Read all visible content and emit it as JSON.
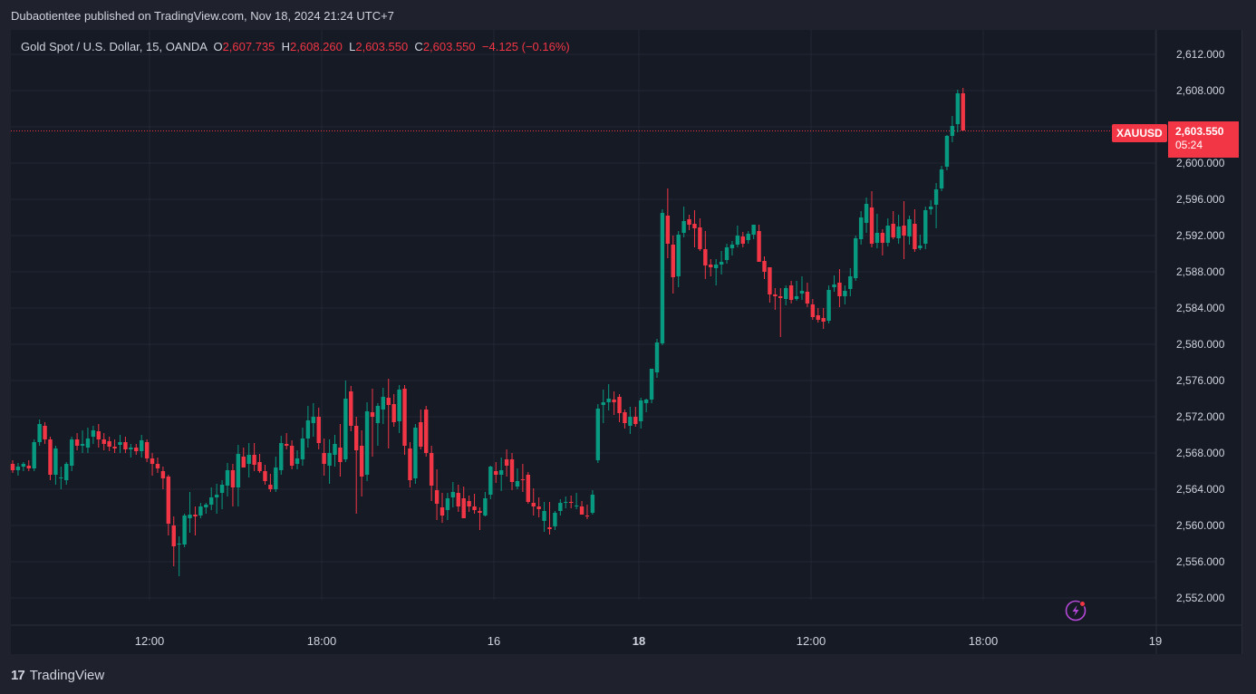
{
  "header": {
    "publisher_line": "Dubaotientee published on TradingView.com, Nov 18, 2024 21:24 UTC+7"
  },
  "legend": {
    "symbol": "Gold Spot / U.S. Dollar, 15, OANDA",
    "open_label": "O",
    "open": "2,607.735",
    "high_label": "H",
    "high": "2,608.260",
    "low_label": "L",
    "low": "2,603.550",
    "close_label": "C",
    "close": "2,603.550",
    "change": "−4.125 (−0.16%)"
  },
  "price_badge": {
    "symbol": "XAUUSD",
    "price": "2,603.550",
    "countdown": "05:24"
  },
  "footer": {
    "brand_mark": "17",
    "brand": "TradingView"
  },
  "colors": {
    "up": "#089981",
    "down": "#f23645",
    "background": "#161a25",
    "grid": "#232733",
    "text": "#d1d4dc"
  },
  "icons": {
    "flash": "lightning-icon"
  },
  "chart_data": {
    "type": "candlestick",
    "title": "Gold Spot / U.S. Dollar, 15, OANDA",
    "ylim": [
      2549,
      2615
    ],
    "y_ticks": [
      "2,612.000",
      "2,608.000",
      "2,604.000",
      "2,600.000",
      "2,596.000",
      "2,592.000",
      "2,588.000",
      "2,584.000",
      "2,580.000",
      "2,576.000",
      "2,572.000",
      "2,568.000",
      "2,564.000",
      "2,560.000",
      "2,556.000",
      "2,552.000"
    ],
    "y_tick_values": [
      2612,
      2608,
      2604,
      2600,
      2596,
      2592,
      2588,
      2584,
      2580,
      2576,
      2572,
      2568,
      2564,
      2560,
      2556,
      2552
    ],
    "x_ticks": [
      {
        "label": "12:00",
        "bold": false
      },
      {
        "label": "18:00",
        "bold": false
      },
      {
        "label": "16",
        "bold": false
      },
      {
        "label": "18",
        "bold": true
      },
      {
        "label": "12:00",
        "bold": false
      },
      {
        "label": "18:00",
        "bold": false
      },
      {
        "label": "19",
        "bold": false
      }
    ],
    "last_price": 2603.55,
    "grid": true,
    "candles": [
      [
        2566.8,
        2567.2,
        2565.8,
        2566.1
      ],
      [
        2566.1,
        2566.9,
        2565.5,
        2566.5
      ],
      [
        2566.5,
        2567.0,
        2566.0,
        2566.8
      ],
      [
        2566.6,
        2567.2,
        2566.0,
        2566.3
      ],
      [
        2566.3,
        2569.5,
        2566.0,
        2569.2
      ],
      [
        2569.2,
        2571.7,
        2568.8,
        2571.2
      ],
      [
        2571.0,
        2571.4,
        2569.0,
        2569.5
      ],
      [
        2569.5,
        2569.8,
        2565.0,
        2565.6
      ],
      [
        2565.6,
        2568.8,
        2564.5,
        2568.5
      ],
      [
        2565.2,
        2566.5,
        2564.0,
        2565.3
      ],
      [
        2565.0,
        2567.0,
        2564.5,
        2566.8
      ],
      [
        2566.6,
        2569.8,
        2566.0,
        2569.5
      ],
      [
        2569.5,
        2570.2,
        2568.3,
        2568.8
      ],
      [
        2568.8,
        2570.5,
        2568.0,
        2569.0
      ],
      [
        2568.6,
        2570.8,
        2568.0,
        2569.6
      ],
      [
        2569.8,
        2571.0,
        2569.0,
        2570.5
      ],
      [
        2570.4,
        2571.2,
        2568.6,
        2569.5
      ],
      [
        2569.5,
        2570.2,
        2568.3,
        2569.0
      ],
      [
        2569.3,
        2569.8,
        2568.2,
        2568.7
      ],
      [
        2568.7,
        2569.5,
        2568.0,
        2568.5
      ],
      [
        2568.9,
        2570.0,
        2568.0,
        2569.2
      ],
      [
        2569.2,
        2569.8,
        2568.0,
        2568.4
      ],
      [
        2568.4,
        2569.0,
        2567.5,
        2568.6
      ],
      [
        2568.6,
        2569.0,
        2567.8,
        2568.2
      ],
      [
        2568.2,
        2570.0,
        2567.5,
        2569.4
      ],
      [
        2569.2,
        2569.5,
        2567.0,
        2567.4
      ],
      [
        2567.4,
        2568.0,
        2565.5,
        2566.8
      ],
      [
        2566.8,
        2567.5,
        2565.8,
        2566.3
      ],
      [
        2566.0,
        2566.5,
        2564.0,
        2565.2
      ],
      [
        2565.4,
        2565.6,
        2558.9,
        2560.2
      ],
      [
        2560.0,
        2561.0,
        2555.5,
        2557.7
      ],
      [
        2558.0,
        2558.8,
        2554.4,
        2558.0
      ],
      [
        2557.9,
        2561.3,
        2557.6,
        2561.1
      ],
      [
        2560.8,
        2563.7,
        2559.2,
        2561.2
      ],
      [
        2561.2,
        2562.1,
        2558.9,
        2561.0
      ],
      [
        2561.1,
        2562.5,
        2560.8,
        2562.1
      ],
      [
        2562.0,
        2562.5,
        2561.3,
        2562.3
      ],
      [
        2562.3,
        2564.2,
        2561.7,
        2563.1
      ],
      [
        2563.1,
        2564.6,
        2561.3,
        2563.4
      ],
      [
        2563.6,
        2565.0,
        2561.8,
        2564.5
      ],
      [
        2564.4,
        2566.9,
        2563.2,
        2566.1
      ],
      [
        2566.1,
        2566.8,
        2562.1,
        2564.2
      ],
      [
        2564.2,
        2568.9,
        2562.1,
        2567.9
      ],
      [
        2567.6,
        2568.6,
        2566.4,
        2566.4
      ],
      [
        2566.8,
        2569.1,
        2565.3,
        2567.8
      ],
      [
        2567.8,
        2569.1,
        2566.0,
        2566.7
      ],
      [
        2567.0,
        2567.9,
        2565.8,
        2566.0
      ],
      [
        2566.0,
        2566.7,
        2564.5,
        2564.9
      ],
      [
        2564.5,
        2565.7,
        2563.7,
        2564.0
      ],
      [
        2564.0,
        2567.6,
        2563.7,
        2566.4
      ],
      [
        2566.1,
        2569.9,
        2565.6,
        2569.1
      ],
      [
        2569.0,
        2570.2,
        2568.4,
        2568.8
      ],
      [
        2568.8,
        2569.4,
        2566.2,
        2566.6
      ],
      [
        2566.8,
        2568.3,
        2566.2,
        2567.4
      ],
      [
        2567.3,
        2570.8,
        2566.6,
        2569.6
      ],
      [
        2569.6,
        2573.2,
        2568.6,
        2571.6
      ],
      [
        2571.3,
        2573.5,
        2569.8,
        2572.0
      ],
      [
        2572.0,
        2573.0,
        2568.4,
        2569.1
      ],
      [
        2568.0,
        2569.6,
        2565.5,
        2566.8
      ],
      [
        2566.6,
        2569.5,
        2564.6,
        2568.0
      ],
      [
        2567.8,
        2570.0,
        2566.5,
        2569.0
      ],
      [
        2568.6,
        2571.2,
        2565.4,
        2567.0
      ],
      [
        2567.3,
        2576.0,
        2567.0,
        2574.0
      ],
      [
        2574.8,
        2575.4,
        2570.4,
        2571.0
      ],
      [
        2571.0,
        2572.0,
        2561.3,
        2568.3
      ],
      [
        2568.8,
        2570.5,
        2563.2,
        2565.4
      ],
      [
        2565.6,
        2573.6,
        2564.9,
        2572.6
      ],
      [
        2572.5,
        2575.1,
        2567.6,
        2572.0
      ],
      [
        2571.3,
        2573.5,
        2568.8,
        2573.2
      ],
      [
        2572.8,
        2575.2,
        2571.2,
        2574.2
      ],
      [
        2574.1,
        2576.2,
        2568.5,
        2573.3
      ],
      [
        2573.4,
        2574.5,
        2570.9,
        2571.4
      ],
      [
        2571.5,
        2575.5,
        2570.2,
        2575.0
      ],
      [
        2575.1,
        2575.5,
        2567.8,
        2568.8
      ],
      [
        2568.5,
        2569.2,
        2564.2,
        2565.0
      ],
      [
        2565.2,
        2571.2,
        2564.6,
        2570.8
      ],
      [
        2571.4,
        2572.8,
        2568.4,
        2568.7
      ],
      [
        2572.8,
        2573.2,
        2567.6,
        2568.0
      ],
      [
        2568.0,
        2568.8,
        2562.7,
        2564.4
      ],
      [
        2563.9,
        2566.2,
        2560.6,
        2562.4
      ],
      [
        2562.0,
        2563.6,
        2560.3,
        2561.1
      ],
      [
        2561.7,
        2563.6,
        2560.6,
        2563.0
      ],
      [
        2563.1,
        2564.8,
        2562.0,
        2563.7
      ],
      [
        2563.6,
        2564.5,
        2561.5,
        2562.1
      ],
      [
        2563.0,
        2564.3,
        2560.8,
        2560.8
      ],
      [
        2562.7,
        2563.3,
        2561.5,
        2562.1
      ],
      [
        2562.1,
        2563.5,
        2561.3,
        2561.7
      ],
      [
        2561.6,
        2562.0,
        2559.5,
        2561.4
      ],
      [
        2561.1,
        2563.7,
        2561.0,
        2563.0
      ],
      [
        2563.4,
        2566.6,
        2562.9,
        2566.5
      ],
      [
        2566.0,
        2567.0,
        2564.7,
        2565.6
      ],
      [
        2565.6,
        2567.5,
        2563.8,
        2566.1
      ],
      [
        2567.3,
        2568.4,
        2565.4,
        2566.6
      ],
      [
        2567.3,
        2568.0,
        2563.9,
        2564.8
      ],
      [
        2564.3,
        2566.3,
        2564.0,
        2564.9
      ],
      [
        2565.1,
        2566.8,
        2563.7,
        2565.0
      ],
      [
        2565.6,
        2565.9,
        2562.4,
        2562.6
      ],
      [
        2562.5,
        2564.1,
        2561.1,
        2562.1
      ],
      [
        2562.1,
        2563.1,
        2560.9,
        2561.8
      ],
      [
        2560.5,
        2562.6,
        2559.3,
        2561.6
      ],
      [
        2559.8,
        2562.6,
        2559.0,
        2559.6
      ],
      [
        2559.9,
        2561.6,
        2559.5,
        2561.4
      ],
      [
        2561.6,
        2562.9,
        2561.1,
        2562.5
      ],
      [
        2562.6,
        2563.2,
        2561.9,
        2562.6
      ],
      [
        2562.6,
        2563.3,
        2561.9,
        2562.5
      ],
      [
        2562.2,
        2563.6,
        2561.8,
        2562.2
      ],
      [
        2562.1,
        2562.7,
        2561.2,
        2561.2
      ],
      [
        2561.1,
        2562.3,
        2560.7,
        2561.0
      ],
      [
        2561.4,
        2563.9,
        2561.2,
        2563.4
      ],
      [
        2567.2,
        2573.4,
        2566.9,
        2572.9
      ],
      [
        2573.3,
        2575.0,
        2571.3,
        2573.6
      ],
      [
        2573.6,
        2575.6,
        2572.7,
        2574.0
      ],
      [
        2573.9,
        2574.8,
        2572.2,
        2573.6
      ],
      [
        2574.2,
        2574.5,
        2571.4,
        2572.4
      ],
      [
        2572.5,
        2572.8,
        2570.7,
        2571.3
      ],
      [
        2571.0,
        2573.1,
        2570.1,
        2572.0
      ],
      [
        2572.0,
        2573.1,
        2570.9,
        2571.2
      ],
      [
        2571.5,
        2574.1,
        2570.7,
        2573.8
      ],
      [
        2573.5,
        2574.0,
        2572.5,
        2573.9
      ],
      [
        2573.9,
        2577.3,
        2573.5,
        2577.3
      ],
      [
        2576.9,
        2580.6,
        2576.3,
        2580.2
      ],
      [
        2580.1,
        2594.9,
        2579.9,
        2594.5
      ],
      [
        2594.2,
        2597.2,
        2589.5,
        2591.1
      ],
      [
        2591.0,
        2592.0,
        2585.6,
        2587.4
      ],
      [
        2587.5,
        2592.5,
        2586.3,
        2592.1
      ],
      [
        2592.3,
        2595.2,
        2591.8,
        2593.6
      ],
      [
        2593.8,
        2594.3,
        2592.6,
        2593.2
      ],
      [
        2593.3,
        2594.8,
        2590.7,
        2592.8
      ],
      [
        2592.9,
        2593.9,
        2590.3,
        2590.5
      ],
      [
        2590.5,
        2592.5,
        2587.2,
        2588.7
      ],
      [
        2588.8,
        2589.4,
        2587.5,
        2588.5
      ],
      [
        2588.4,
        2589.4,
        2586.5,
        2588.8
      ],
      [
        2588.8,
        2590.3,
        2587.7,
        2589.1
      ],
      [
        2589.3,
        2591.1,
        2588.9,
        2590.7
      ],
      [
        2590.6,
        2591.4,
        2589.8,
        2591.0
      ],
      [
        2591.0,
        2593.1,
        2590.7,
        2592.0
      ],
      [
        2591.9,
        2592.4,
        2590.7,
        2591.1
      ],
      [
        2591.5,
        2592.5,
        2591.1,
        2592.2
      ],
      [
        2592.1,
        2593.2,
        2591.6,
        2593.2
      ],
      [
        2592.5,
        2593.2,
        2589.1,
        2589.1
      ],
      [
        2589.2,
        2589.7,
        2587.2,
        2588.0
      ],
      [
        2588.5,
        2588.5,
        2584.6,
        2585.5
      ],
      [
        2585.5,
        2586.2,
        2583.8,
        2585.3
      ],
      [
        2585.3,
        2586.2,
        2580.8,
        2585.1
      ],
      [
        2585.0,
        2586.5,
        2584.3,
        2586.2
      ],
      [
        2586.5,
        2587.0,
        2584.5,
        2584.9
      ],
      [
        2585.0,
        2587.0,
        2584.8,
        2585.3
      ],
      [
        2585.6,
        2587.5,
        2584.9,
        2585.9
      ],
      [
        2585.8,
        2586.8,
        2584.1,
        2584.5
      ],
      [
        2584.4,
        2585.0,
        2582.7,
        2583.0
      ],
      [
        2583.2,
        2584.0,
        2582.4,
        2582.7
      ],
      [
        2582.9,
        2584.0,
        2581.7,
        2582.5
      ],
      [
        2582.6,
        2586.5,
        2582.3,
        2586.0
      ],
      [
        2586.3,
        2587.6,
        2585.8,
        2586.6
      ],
      [
        2586.8,
        2588.3,
        2584.1,
        2585.3
      ],
      [
        2585.3,
        2586.5,
        2584.4,
        2585.9
      ],
      [
        2586.1,
        2588.4,
        2585.3,
        2587.5
      ],
      [
        2587.3,
        2592.0,
        2587.0,
        2591.7
      ],
      [
        2591.6,
        2594.7,
        2591.0,
        2594.0
      ],
      [
        2593.4,
        2596.2,
        2592.3,
        2595.5
      ],
      [
        2595.1,
        2596.9,
        2590.7,
        2591.1
      ],
      [
        2591.2,
        2594.4,
        2590.6,
        2592.3
      ],
      [
        2592.3,
        2592.7,
        2589.8,
        2591.2
      ],
      [
        2591.2,
        2593.9,
        2590.8,
        2593.1
      ],
      [
        2593.3,
        2594.7,
        2591.6,
        2591.8
      ],
      [
        2591.7,
        2594.3,
        2591.1,
        2593.0
      ],
      [
        2593.1,
        2595.8,
        2589.4,
        2592.0
      ],
      [
        2591.9,
        2594.2,
        2591.0,
        2593.8
      ],
      [
        2593.3,
        2594.9,
        2590.2,
        2590.5
      ],
      [
        2590.6,
        2592.1,
        2590.4,
        2590.9
      ],
      [
        2591.1,
        2595.2,
        2590.5,
        2594.8
      ],
      [
        2594.9,
        2595.9,
        2594.3,
        2595.2
      ],
      [
        2595.4,
        2597.8,
        2592.8,
        2597.1
      ],
      [
        2597.2,
        2599.7,
        2596.9,
        2599.3
      ],
      [
        2599.6,
        2603.1,
        2599.2,
        2603.0
      ],
      [
        2603.0,
        2605.2,
        2602.3,
        2604.1
      ],
      [
        2604.3,
        2608.1,
        2603.4,
        2607.7
      ],
      [
        2607.7,
        2608.3,
        2603.6,
        2603.6
      ]
    ]
  }
}
